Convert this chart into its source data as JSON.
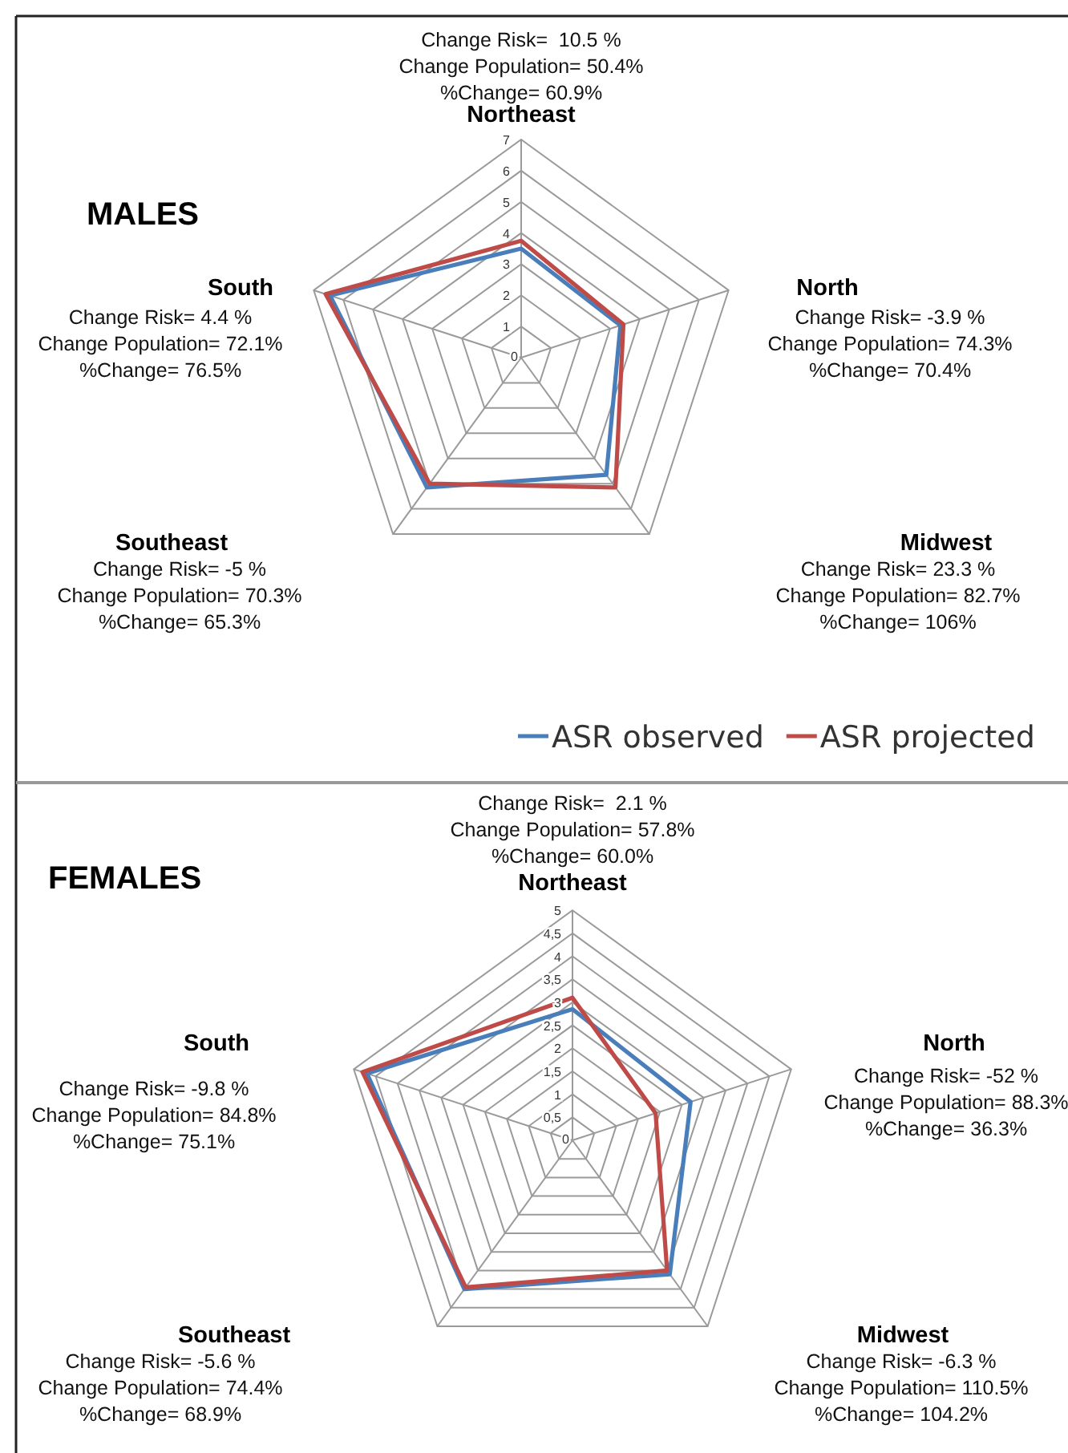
{
  "chart_data": [
    {
      "type": "radar",
      "title": "MALES",
      "categories": [
        "Northeast",
        "North",
        "Midwest",
        "Southeast",
        "South"
      ],
      "series": [
        {
          "name": "ASR observed",
          "color": "#4a7ebb",
          "values": [
            3.5,
            3.35,
            4.65,
            5.15,
            6.45
          ]
        },
        {
          "name": "ASR projected",
          "color": "#be4b48",
          "values": [
            3.75,
            3.45,
            5.15,
            5.0,
            6.6
          ]
        }
      ],
      "ylim": [
        0,
        7
      ],
      "yticks": [
        0,
        1,
        2,
        3,
        4,
        5,
        6,
        7
      ],
      "grid": true,
      "legend": "bottom right",
      "annotations": [
        "Change Risk=  10.5 %\nChange Population= 50.4%\n%Change= 60.9%",
        "Change Risk= -3.9 %\nChange Population= 74.3%\n%Change= 70.4%",
        "Change Risk= 23.3 %\nChange Population= 82.7%\n%Change= 106%",
        "Change Risk= -5 %\nChange Population= 70.3%\n%Change= 65.3%",
        "Change Risk= 4.4 %\nChange Population= 72.1%\n%Change= 76.5%"
      ]
    },
    {
      "type": "radar",
      "title": "FEMALES",
      "categories": [
        "Northeast",
        "North",
        "Midwest",
        "Southeast",
        "South"
      ],
      "series": [
        {
          "color": "#4a7ebb",
          "values": [
            2.85,
            2.7,
            3.6,
            4.0,
            4.7
          ]
        },
        {
          "color": "#be4b48",
          "values": [
            3.1,
            1.9,
            3.5,
            3.95,
            4.8
          ]
        }
      ],
      "ylim": [
        0,
        5
      ],
      "yticks": [
        0,
        {
          "value": 0.5,
          "label": "0,5"
        },
        1,
        {
          "value": 1.5,
          "label": "1,5"
        },
        2,
        {
          "value": 2.5,
          "label": "2,5"
        },
        3,
        {
          "value": 3.5,
          "label": "3,5"
        },
        4,
        {
          "value": 4.5,
          "label": "4,5"
        },
        5
      ],
      "grid": true,
      "annotations": [
        "Change Risk=  2.1 %\nChange Population= 57.8%\n%Change= 60.0%",
        "Change Risk= -52 %\nChange Population= 88.3%\n%Change= 36.3%",
        "Change Risk= -6.3 %\nChange Population= 110.5%\n%Change= 104.2%",
        "Change Risk= -5.6 %\nChange Population= 74.4%\n%Change= 68.9%",
        "Change Risk= -9.8 %\nChange Population= 84.8%\n%Change= 75.1%"
      ]
    }
  ]
}
